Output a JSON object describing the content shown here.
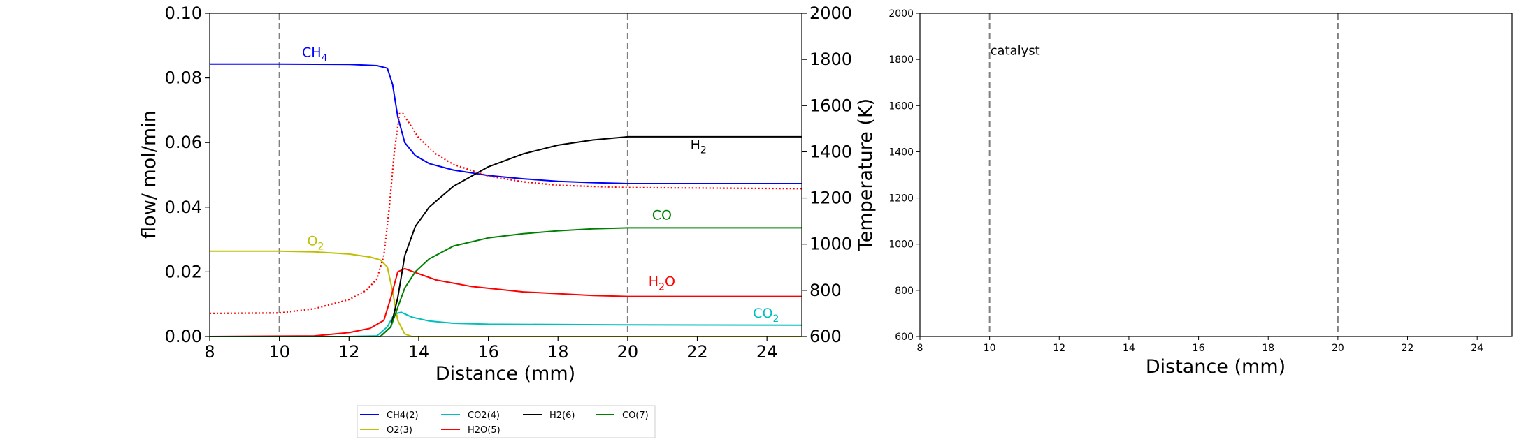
{
  "chart_data": [
    {
      "type": "line",
      "xlabel": "Distance (mm)",
      "ylabel": "flow/ mol/min",
      "y2label": "Temperature (K)",
      "xlim": [
        8,
        25
      ],
      "ylim": [
        0,
        0.1
      ],
      "y2lim": [
        600,
        2000
      ],
      "xticks": [
        "8",
        "10",
        "12",
        "14",
        "16",
        "18",
        "20",
        "22",
        "24"
      ],
      "yticks": [
        "0.00",
        "0.02",
        "0.04",
        "0.06",
        "0.08",
        "0.10"
      ],
      "y2ticks": [
        "600",
        "800",
        "1000",
        "1200",
        "1400",
        "1600",
        "1800",
        "2000"
      ],
      "vlines": [
        10,
        20
      ],
      "grid": false,
      "legend_placement": "below",
      "series": [
        {
          "name": "CH4(2)",
          "color": "#0000ff",
          "axis": "left",
          "x": [
            8,
            10,
            12,
            12.8,
            13.1,
            13.25,
            13.4,
            13.6,
            13.9,
            14.3,
            15,
            16,
            17,
            18,
            19,
            20,
            25
          ],
          "y": [
            0.0843,
            0.0843,
            0.0842,
            0.0838,
            0.083,
            0.078,
            0.068,
            0.06,
            0.056,
            0.0535,
            0.0515,
            0.0498,
            0.0488,
            0.048,
            0.0476,
            0.0473,
            0.0473
          ]
        },
        {
          "name": "O2(3)",
          "color": "#bfbf00",
          "axis": "left",
          "x": [
            8,
            10,
            11,
            12,
            12.6,
            12.9,
            13.1,
            13.25,
            13.4,
            13.6,
            13.8,
            25
          ],
          "y": [
            0.0264,
            0.0264,
            0.0262,
            0.0255,
            0.0246,
            0.0237,
            0.0215,
            0.014,
            0.005,
            0.0008,
            0,
            0
          ]
        },
        {
          "name": "CO2(4)",
          "color": "#00bfbf",
          "axis": "left",
          "x": [
            8,
            12,
            12.8,
            13.1,
            13.3,
            13.5,
            13.8,
            14.3,
            15,
            16,
            20,
            25
          ],
          "y": [
            0,
            0,
            0.0002,
            0.003,
            0.007,
            0.0075,
            0.006,
            0.0048,
            0.0041,
            0.0038,
            0.0036,
            0.0035
          ]
        },
        {
          "name": "H2O(5)",
          "color": "#ff0000",
          "axis": "left",
          "x": [
            8,
            11,
            12,
            12.6,
            13,
            13.2,
            13.4,
            13.6,
            13.9,
            14.5,
            15.5,
            17,
            19,
            20,
            25
          ],
          "y": [
            0,
            0.0002,
            0.0012,
            0.0025,
            0.005,
            0.012,
            0.02,
            0.021,
            0.0198,
            0.0175,
            0.0155,
            0.0138,
            0.0127,
            0.0124,
            0.0124
          ]
        },
        {
          "name": "H2(6)",
          "color": "#000000",
          "axis": "left",
          "x": [
            8,
            12.9,
            13.2,
            13.4,
            13.6,
            13.9,
            14.3,
            15,
            16,
            17,
            18,
            19,
            20,
            25
          ],
          "y": [
            0,
            0,
            0.003,
            0.012,
            0.025,
            0.034,
            0.04,
            0.0465,
            0.0525,
            0.0565,
            0.0592,
            0.0608,
            0.0618,
            0.0618
          ]
        },
        {
          "name": "CO(7)",
          "color": "#008000",
          "axis": "left",
          "x": [
            8,
            12.9,
            13.2,
            13.4,
            13.6,
            13.9,
            14.3,
            15,
            16,
            17,
            18,
            19,
            20,
            25
          ],
          "y": [
            0,
            0,
            0.003,
            0.009,
            0.015,
            0.02,
            0.024,
            0.028,
            0.0305,
            0.0318,
            0.0327,
            0.0333,
            0.0336,
            0.0336
          ]
        },
        {
          "name": "",
          "color": "#ff0000",
          "axis": "right",
          "style": "dotted",
          "x": [
            8,
            10,
            11,
            12,
            12.5,
            12.8,
            13,
            13.15,
            13.3,
            13.45,
            13.55,
            13.7,
            14,
            14.5,
            15,
            16,
            17,
            18,
            20,
            25
          ],
          "y": [
            700,
            702,
            720,
            760,
            800,
            850,
            950,
            1150,
            1400,
            1565,
            1565,
            1530,
            1460,
            1390,
            1345,
            1295,
            1270,
            1255,
            1245,
            1240
          ]
        }
      ],
      "annotations": [
        {
          "base": "CH",
          "sub": "4",
          "after": "",
          "x": 10.65,
          "y": 0.0865,
          "color": "#0000ff"
        },
        {
          "base": "O",
          "sub": "2",
          "after": "",
          "x": 10.8,
          "y": 0.0282,
          "color": "#bfbf00"
        },
        {
          "base": "H",
          "sub": "2",
          "after": "",
          "x": 21.8,
          "y": 0.058,
          "color": "#000000"
        },
        {
          "base": "CO",
          "sub": "",
          "after": "",
          "x": 20.7,
          "y": 0.0362,
          "color": "#008000"
        },
        {
          "base": "H",
          "sub": "2",
          "after": "O",
          "x": 20.6,
          "y": 0.0157,
          "color": "#ff0000"
        },
        {
          "base": "CO",
          "sub": "2",
          "after": "",
          "x": 23.6,
          "y": 0.0058,
          "color": "#00bfbf"
        }
      ]
    },
    {
      "type": "line",
      "xlabel": "Distance (mm)",
      "xlim": [
        8,
        25
      ],
      "ylim": [
        600,
        2000
      ],
      "xticks": [
        "8",
        "10",
        "12",
        "14",
        "16",
        "18",
        "20",
        "22",
        "24"
      ],
      "yticks": [
        "600",
        "800",
        "1000",
        "1200",
        "1400",
        "1600",
        "1800",
        "2000"
      ],
      "vlines": [
        10,
        20
      ],
      "grid": false,
      "series": [],
      "annotations": [
        {
          "text": "catalyst",
          "x": 10.0,
          "y": 1820,
          "color": "#000000"
        }
      ]
    }
  ],
  "legend": {
    "entries": [
      {
        "label": "CH4(2)",
        "color": "#0000ff"
      },
      {
        "label": "CO2(4)",
        "color": "#00bfbf"
      },
      {
        "label": "H2(6)",
        "color": "#000000"
      },
      {
        "label": "CO(7)",
        "color": "#008000"
      },
      {
        "label": "O2(3)",
        "color": "#bfbf00"
      },
      {
        "label": "H2O(5)",
        "color": "#ff0000"
      }
    ]
  }
}
